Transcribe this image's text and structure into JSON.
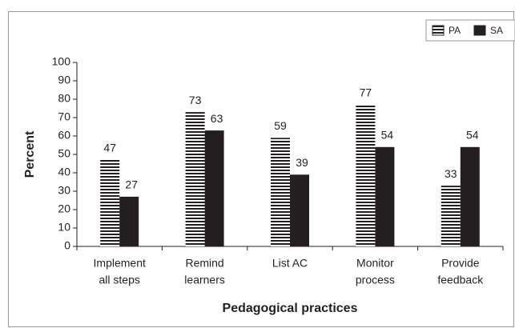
{
  "chart_data": {
    "type": "bar",
    "categories": [
      [
        "Implement",
        "all steps"
      ],
      [
        "Remind",
        "learners"
      ],
      [
        "List AC"
      ],
      [
        "Monitor",
        "process"
      ],
      [
        "Provide",
        "feedback"
      ]
    ],
    "series": [
      {
        "name": "PA",
        "color": "#231f20",
        "hatch": "horizontal",
        "values": [
          47,
          73,
          59,
          77,
          33
        ]
      },
      {
        "name": "SA",
        "color": "#231f20",
        "values": [
          27,
          63,
          39,
          54,
          54
        ]
      }
    ],
    "ylabel": "Percent",
    "xlabel": "Pedagogical practices",
    "ylim": [
      0,
      100
    ],
    "yticks": [
      0,
      10,
      20,
      30,
      40,
      50,
      60,
      70,
      80,
      90,
      100
    ],
    "grid": false,
    "legend": "top-right"
  }
}
